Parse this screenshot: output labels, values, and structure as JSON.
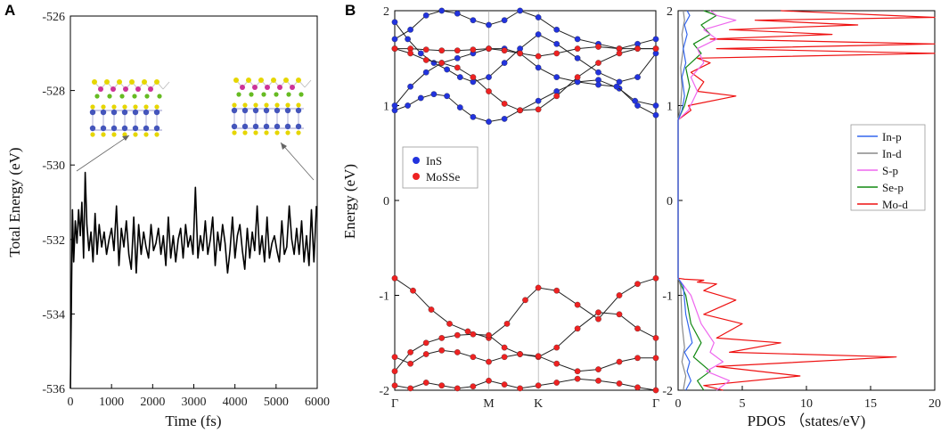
{
  "panels": {
    "a": "A",
    "b": "B"
  },
  "chart_data": [
    {
      "type": "line",
      "title": "",
      "xlabel": "Time (fs)",
      "ylabel": "Total Energy (eV)",
      "xlim": [
        0,
        6000
      ],
      "ylim": [
        -536,
        -526
      ],
      "xticks": [
        "0",
        "1000",
        "2000",
        "3000",
        "4000",
        "5000",
        "6000"
      ],
      "yticks": [
        "-526",
        "-528",
        "-530",
        "-532",
        "-534",
        "-536"
      ],
      "series": [
        {
          "name": "Total Energy",
          "color": "#000000",
          "x": [
            0,
            25,
            50,
            80,
            120,
            160,
            200,
            240,
            280,
            320,
            360,
            400,
            450,
            500,
            550,
            600,
            650,
            700,
            760,
            820,
            880,
            940,
            1000,
            1060,
            1120,
            1180,
            1240,
            1300,
            1360,
            1420,
            1480,
            1540,
            1600,
            1660,
            1720,
            1780,
            1840,
            1900,
            1960,
            2020,
            2080,
            2140,
            2200,
            2260,
            2320,
            2380,
            2440,
            2500,
            2560,
            2620,
            2680,
            2740,
            2800,
            2860,
            2920,
            2980,
            3040,
            3100,
            3160,
            3220,
            3280,
            3340,
            3400,
            3460,
            3520,
            3580,
            3640,
            3700,
            3760,
            3820,
            3880,
            3940,
            4000,
            4060,
            4120,
            4180,
            4240,
            4300,
            4360,
            4420,
            4480,
            4540,
            4600,
            4660,
            4720,
            4780,
            4840,
            4900,
            4960,
            5020,
            5080,
            5140,
            5200,
            5260,
            5320,
            5380,
            5440,
            5500,
            5560,
            5620,
            5680,
            5740,
            5800,
            5860,
            5920,
            5980
          ],
          "y": [
            -536.0,
            -533.5,
            -531.2,
            -532.6,
            -531.5,
            -532.1,
            -531.2,
            -531.9,
            -531.0,
            -532.5,
            -530.2,
            -531.6,
            -532.3,
            -531.8,
            -532.6,
            -531.3,
            -532.4,
            -531.6,
            -532.2,
            -531.8,
            -532.4,
            -532.0,
            -531.7,
            -532.3,
            -531.1,
            -532.7,
            -531.7,
            -532.2,
            -531.5,
            -532.4,
            -532.8,
            -531.4,
            -532.9,
            -531.6,
            -532.4,
            -531.8,
            -532.2,
            -532.5,
            -531.6,
            -532.3,
            -532.1,
            -531.7,
            -532.4,
            -531.9,
            -532.7,
            -531.4,
            -532.5,
            -531.9,
            -532.6,
            -532.0,
            -531.7,
            -532.5,
            -531.6,
            -532.2,
            -531.9,
            -532.4,
            -530.6,
            -532.5,
            -531.9,
            -532.3,
            -531.5,
            -532.4,
            -532.0,
            -531.4,
            -532.7,
            -531.8,
            -532.3,
            -531.6,
            -532.1,
            -532.9,
            -532.3,
            -531.4,
            -532.5,
            -531.9,
            -531.6,
            -532.3,
            -532.8,
            -531.7,
            -532.5,
            -531.8,
            -532.3,
            -531.1,
            -532.4,
            -531.9,
            -532.6,
            -531.4,
            -532.5,
            -532.1,
            -531.9,
            -532.3,
            -532.6,
            -531.5,
            -532.4,
            -532.2,
            -531.1,
            -532.0,
            -532.4,
            -531.7,
            -532.4,
            -531.5,
            -532.6,
            -531.9,
            -532.7,
            -531.2,
            -532.6,
            -531.1
          ]
        }
      ]
    },
    {
      "type": "line",
      "title": "",
      "xlabel": "",
      "ylabel": "Energy (eV)",
      "ylim": [
        -2,
        2
      ],
      "yticks": [
        "2",
        "1",
        "0",
        "-1",
        "-2"
      ],
      "kpoints": [
        {
          "label": "Γ",
          "x": 0.0
        },
        {
          "label": "M",
          "x": 0.36
        },
        {
          "label": "K",
          "x": 0.55
        },
        {
          "label": "Γ",
          "x": 1.0
        }
      ],
      "legend": [
        {
          "name": "InS",
          "color": "#2233dd"
        },
        {
          "name": "MoSSe",
          "color": "#ee2222"
        }
      ],
      "bands": [
        {
          "marker": "InS",
          "x": [
            0,
            0.05,
            0.1,
            0.15,
            0.2,
            0.25,
            0.3,
            0.36,
            0.42,
            0.48,
            0.55,
            0.62,
            0.7,
            0.78,
            0.86,
            0.93,
            1.0
          ],
          "y": [
            0.95,
            1.0,
            1.08,
            1.12,
            1.1,
            0.98,
            0.88,
            0.83,
            0.86,
            0.95,
            1.05,
            1.15,
            1.25,
            1.27,
            1.18,
            1.0,
            0.9
          ]
        },
        {
          "marker": "InS",
          "x": [
            0,
            0.06,
            0.12,
            0.18,
            0.24,
            0.3,
            0.36,
            0.42,
            0.48,
            0.55,
            0.62,
            0.7,
            0.78,
            0.85,
            0.92,
            1.0
          ],
          "y": [
            1.0,
            1.2,
            1.35,
            1.45,
            1.5,
            1.55,
            1.6,
            1.6,
            1.55,
            1.4,
            1.3,
            1.25,
            1.22,
            1.2,
            1.05,
            1.0
          ]
        },
        {
          "marker": "InS",
          "x": [
            0,
            0.05,
            0.1,
            0.15,
            0.2,
            0.25,
            0.3,
            0.36,
            0.42,
            0.48,
            0.55,
            0.62,
            0.7,
            0.78,
            0.86,
            0.93,
            1.0
          ],
          "y": [
            1.88,
            1.7,
            1.55,
            1.45,
            1.38,
            1.3,
            1.25,
            1.3,
            1.45,
            1.6,
            1.75,
            1.65,
            1.5,
            1.35,
            1.25,
            1.3,
            1.55
          ]
        },
        {
          "marker": "InS",
          "x": [
            0,
            0.06,
            0.12,
            0.18,
            0.24,
            0.3,
            0.36,
            0.42,
            0.48,
            0.55,
            0.62,
            0.7,
            0.78,
            0.86,
            0.93,
            1.0
          ],
          "y": [
            1.7,
            1.8,
            1.95,
            2.0,
            1.97,
            1.9,
            1.85,
            1.9,
            2.0,
            1.93,
            1.8,
            1.7,
            1.65,
            1.6,
            1.65,
            1.7
          ]
        },
        {
          "marker": "MoSSe",
          "x": [
            0,
            0.06,
            0.12,
            0.18,
            0.24,
            0.3,
            0.36,
            0.42,
            0.48,
            0.55,
            0.62,
            0.7,
            0.78,
            0.86,
            0.93,
            1.0
          ],
          "y": [
            1.6,
            1.6,
            1.59,
            1.58,
            1.58,
            1.59,
            1.6,
            1.58,
            1.55,
            1.52,
            1.55,
            1.6,
            1.62,
            1.6,
            1.6,
            1.6
          ]
        },
        {
          "marker": "MoSSe",
          "x": [
            0,
            0.06,
            0.12,
            0.18,
            0.24,
            0.3,
            0.36,
            0.42,
            0.48,
            0.55,
            0.62,
            0.7,
            0.78,
            0.86,
            0.93,
            1.0
          ],
          "y": [
            1.6,
            1.55,
            1.48,
            1.45,
            1.4,
            1.3,
            1.15,
            1.02,
            0.95,
            0.96,
            1.1,
            1.3,
            1.45,
            1.55,
            1.6,
            1.6
          ]
        },
        {
          "marker": "MoSSe",
          "x": [
            0,
            0.07,
            0.14,
            0.21,
            0.28,
            0.36,
            0.43,
            0.5,
            0.55,
            0.62,
            0.7,
            0.78,
            0.86,
            0.93,
            1.0
          ],
          "y": [
            -0.82,
            -0.95,
            -1.15,
            -1.3,
            -1.38,
            -1.45,
            -1.3,
            -1.05,
            -0.92,
            -0.95,
            -1.1,
            -1.25,
            -1.0,
            -0.88,
            -0.82
          ]
        },
        {
          "marker": "MoSSe",
          "x": [
            0,
            0.06,
            0.12,
            0.18,
            0.24,
            0.3,
            0.36,
            0.42,
            0.48,
            0.55,
            0.62,
            0.7,
            0.78,
            0.86,
            0.93,
            1.0
          ],
          "y": [
            -1.8,
            -1.6,
            -1.5,
            -1.45,
            -1.42,
            -1.41,
            -1.42,
            -1.55,
            -1.62,
            -1.65,
            -1.55,
            -1.35,
            -1.18,
            -1.2,
            -1.35,
            -1.45
          ]
        },
        {
          "marker": "MoSSe",
          "x": [
            0,
            0.06,
            0.12,
            0.18,
            0.24,
            0.3,
            0.36,
            0.42,
            0.48,
            0.55,
            0.62,
            0.7,
            0.78,
            0.86,
            0.93,
            1.0
          ],
          "y": [
            -1.65,
            -1.72,
            -1.62,
            -1.58,
            -1.6,
            -1.65,
            -1.7,
            -1.65,
            -1.62,
            -1.64,
            -1.72,
            -1.8,
            -1.78,
            -1.7,
            -1.66,
            -1.66
          ]
        },
        {
          "marker": "MoSSe",
          "x": [
            0,
            0.06,
            0.12,
            0.18,
            0.24,
            0.3,
            0.36,
            0.42,
            0.48,
            0.55,
            0.62,
            0.7,
            0.78,
            0.86,
            0.93,
            1.0
          ],
          "y": [
            -1.95,
            -1.98,
            -1.92,
            -1.95,
            -1.98,
            -1.96,
            -1.9,
            -1.94,
            -1.98,
            -1.95,
            -1.92,
            -1.88,
            -1.9,
            -1.93,
            -1.97,
            -2.0
          ]
        }
      ]
    },
    {
      "type": "line",
      "title": "",
      "xlabel": "PDOS （states/eV)",
      "ylabel": "",
      "xlim": [
        0,
        20
      ],
      "ylim": [
        -2,
        2
      ],
      "xticks": [
        "0",
        "5",
        "10",
        "15",
        "20"
      ],
      "yticks": [
        "2",
        "1",
        "0",
        "-1",
        "-2"
      ],
      "legend_position": "right",
      "series": [
        {
          "name": "In-p",
          "color": "#3366ee",
          "x": [
            0.6,
            1.0,
            0.7,
            0.9,
            0.5,
            1.1,
            0.6,
            0.4,
            0.0,
            0.0,
            0.3,
            0.5,
            0.3,
            0.6,
            0.4,
            0.7,
            0.5,
            0.9,
            0.7
          ],
          "y": [
            -2.0,
            -1.9,
            -1.8,
            -1.7,
            -1.6,
            -1.5,
            -1.2,
            -0.9,
            -0.82,
            0.85,
            0.95,
            1.1,
            1.3,
            1.45,
            1.6,
            1.75,
            1.85,
            1.95,
            2.0
          ]
        },
        {
          "name": "In-d",
          "color": "#888888",
          "x": [
            0.4,
            0.6,
            0.3,
            0.5,
            0.3,
            0.2,
            0.0,
            0.0,
            0.2,
            0.3,
            0.2,
            0.4,
            0.3,
            0.5,
            0.4
          ],
          "y": [
            -2.0,
            -1.85,
            -1.7,
            -1.55,
            -1.3,
            -0.9,
            -0.82,
            0.85,
            1.0,
            1.2,
            1.4,
            1.6,
            1.75,
            1.9,
            2.0
          ]
        },
        {
          "name": "S-p",
          "color": "#ee66ee",
          "x": [
            3.0,
            4.0,
            2.2,
            3.5,
            2.5,
            2.8,
            1.8,
            1.0,
            0.0,
            0.0,
            0.8,
            1.5,
            1.0,
            2.0,
            1.5,
            3.0,
            2.0,
            4.5,
            3.0,
            2.5
          ],
          "y": [
            -2.0,
            -1.9,
            -1.8,
            -1.7,
            -1.6,
            -1.5,
            -1.3,
            -1.0,
            -0.82,
            0.85,
            0.95,
            1.15,
            1.3,
            1.45,
            1.6,
            1.7,
            1.8,
            1.9,
            1.95,
            2.0
          ]
        },
        {
          "name": "Se-p",
          "color": "#118811",
          "x": [
            2.0,
            1.5,
            2.5,
            1.2,
            1.8,
            1.0,
            0.6,
            0.0,
            0.0,
            0.5,
            0.9,
            0.6,
            1.8,
            1.2,
            2.5,
            1.8,
            3.0,
            2.0
          ],
          "y": [
            -2.0,
            -1.9,
            -1.8,
            -1.65,
            -1.5,
            -1.3,
            -1.0,
            -0.82,
            0.85,
            1.0,
            1.2,
            1.4,
            1.55,
            1.65,
            1.75,
            1.85,
            1.95,
            2.0
          ]
        },
        {
          "name": "Mo-d",
          "color": "#ee1111",
          "x": [
            3.5,
            2.0,
            9.5,
            3.0,
            17.0,
            4.0,
            8.0,
            3.0,
            5.0,
            2.0,
            4.5,
            2.0,
            3.0,
            1.5,
            2.0,
            0.5,
            0.0,
            0.0,
            0.5,
            1.0,
            0.8,
            4.5,
            1.5,
            2.0,
            1.0,
            2.5,
            1.5,
            20.0,
            3.0,
            20.0,
            2.5,
            12.0,
            4.0,
            14.0,
            6.0,
            20.0,
            8.0
          ],
          "y": [
            -2.0,
            -1.95,
            -1.85,
            -1.75,
            -1.65,
            -1.6,
            -1.5,
            -1.45,
            -1.3,
            -1.2,
            -1.05,
            -0.95,
            -0.88,
            -0.86,
            -0.84,
            -0.83,
            -0.82,
            0.85,
            0.9,
            0.95,
            1.0,
            1.1,
            1.15,
            1.25,
            1.35,
            1.45,
            1.5,
            1.55,
            1.6,
            1.65,
            1.7,
            1.75,
            1.8,
            1.85,
            1.9,
            1.93,
            2.0
          ]
        }
      ]
    }
  ]
}
